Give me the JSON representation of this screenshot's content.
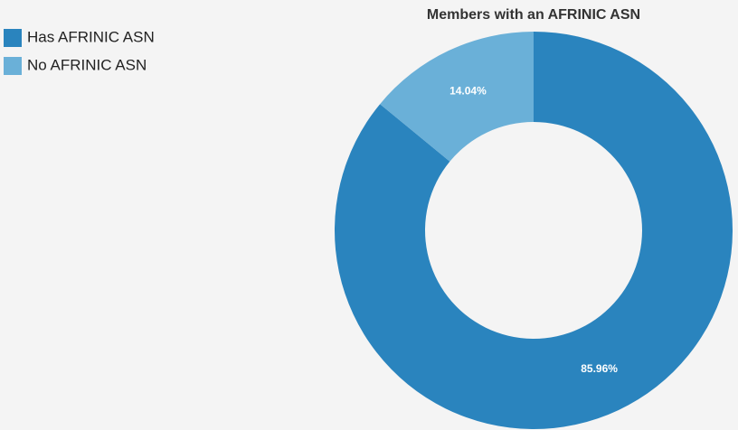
{
  "chart_data": {
    "type": "donut",
    "title": "Members with an AFRINIC ASN",
    "categories": [
      "Has AFRINIC ASN",
      "No AFRINIC ASN"
    ],
    "values": [
      85.96,
      14.04
    ],
    "value_labels": [
      "85.96%",
      "14.04%"
    ],
    "colors": [
      "#2a84be",
      "#6ab0d8"
    ],
    "legend": "top-left"
  }
}
